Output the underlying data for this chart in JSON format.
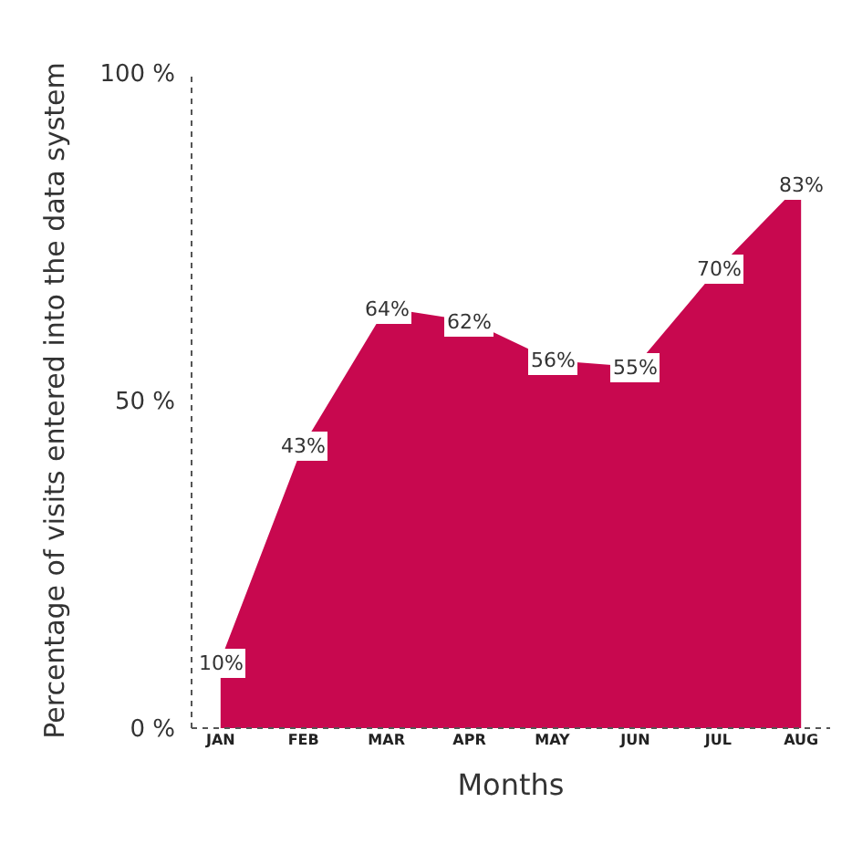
{
  "chart_data": {
    "type": "area",
    "xlabel": "Months",
    "ylabel": "Percentage of visits entered into the data system",
    "categories": [
      "JAN",
      "FEB",
      "MAR",
      "APR",
      "MAY",
      "JUN",
      "JUL",
      "AUG"
    ],
    "values": [
      10,
      43,
      64,
      62,
      56,
      55,
      70,
      83
    ],
    "value_labels": [
      "10%",
      "43%",
      "64%",
      "62%",
      "56%",
      "55%",
      "70%",
      "83%"
    ],
    "color": "#c8084f",
    "ylim": [
      0,
      100
    ],
    "yticks": [
      {
        "value": 0,
        "label": "0 %"
      },
      {
        "value": 50,
        "label": "50 %"
      },
      {
        "value": 100,
        "label": "100 %"
      }
    ],
    "legend": false
  }
}
